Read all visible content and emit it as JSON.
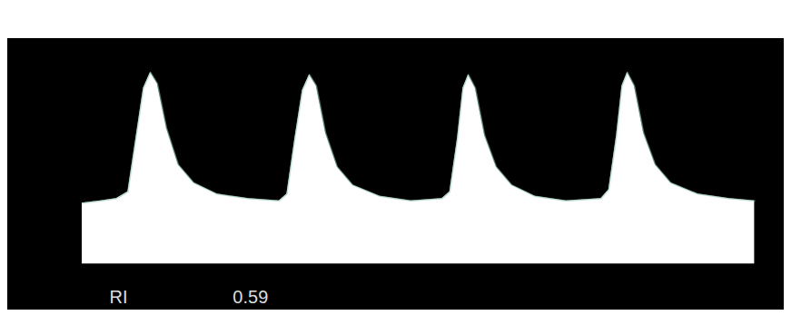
{
  "chart_data": {
    "type": "area",
    "tick_labels": false,
    "xlim": [
      0,
      100
    ],
    "ylim": [
      -20,
      100
    ],
    "x": [
      9.6,
      12,
      14,
      15.5,
      16.5,
      17.5,
      18.4,
      19.3,
      20.5,
      22,
      24,
      27,
      31,
      35,
      36,
      37,
      38,
      38.9,
      39.8,
      41,
      42.5,
      44.5,
      48,
      52,
      56,
      57,
      58,
      58.7,
      59.4,
      60.3,
      61.5,
      63,
      65,
      68,
      72,
      76.5,
      77.5,
      78.5,
      79.2,
      79.9,
      80.8,
      82,
      83.5,
      85.5,
      89,
      93,
      96.3
    ],
    "series": [
      {
        "color": "#ffffff",
        "values": [
          27,
          28,
          29,
          32,
          55,
          78,
          85,
          80,
          60,
          44,
          36,
          31,
          29,
          28,
          31,
          55,
          77,
          84,
          79,
          58,
          43,
          35,
          30,
          28,
          29,
          32,
          56,
          78,
          84,
          78,
          57,
          43,
          35,
          30,
          28,
          29,
          33,
          57,
          79,
          85,
          79,
          58,
          44,
          36,
          31,
          29,
          28
        ]
      }
    ],
    "annotations": [
      {
        "label": "RI",
        "value": 0.59
      }
    ]
  }
}
